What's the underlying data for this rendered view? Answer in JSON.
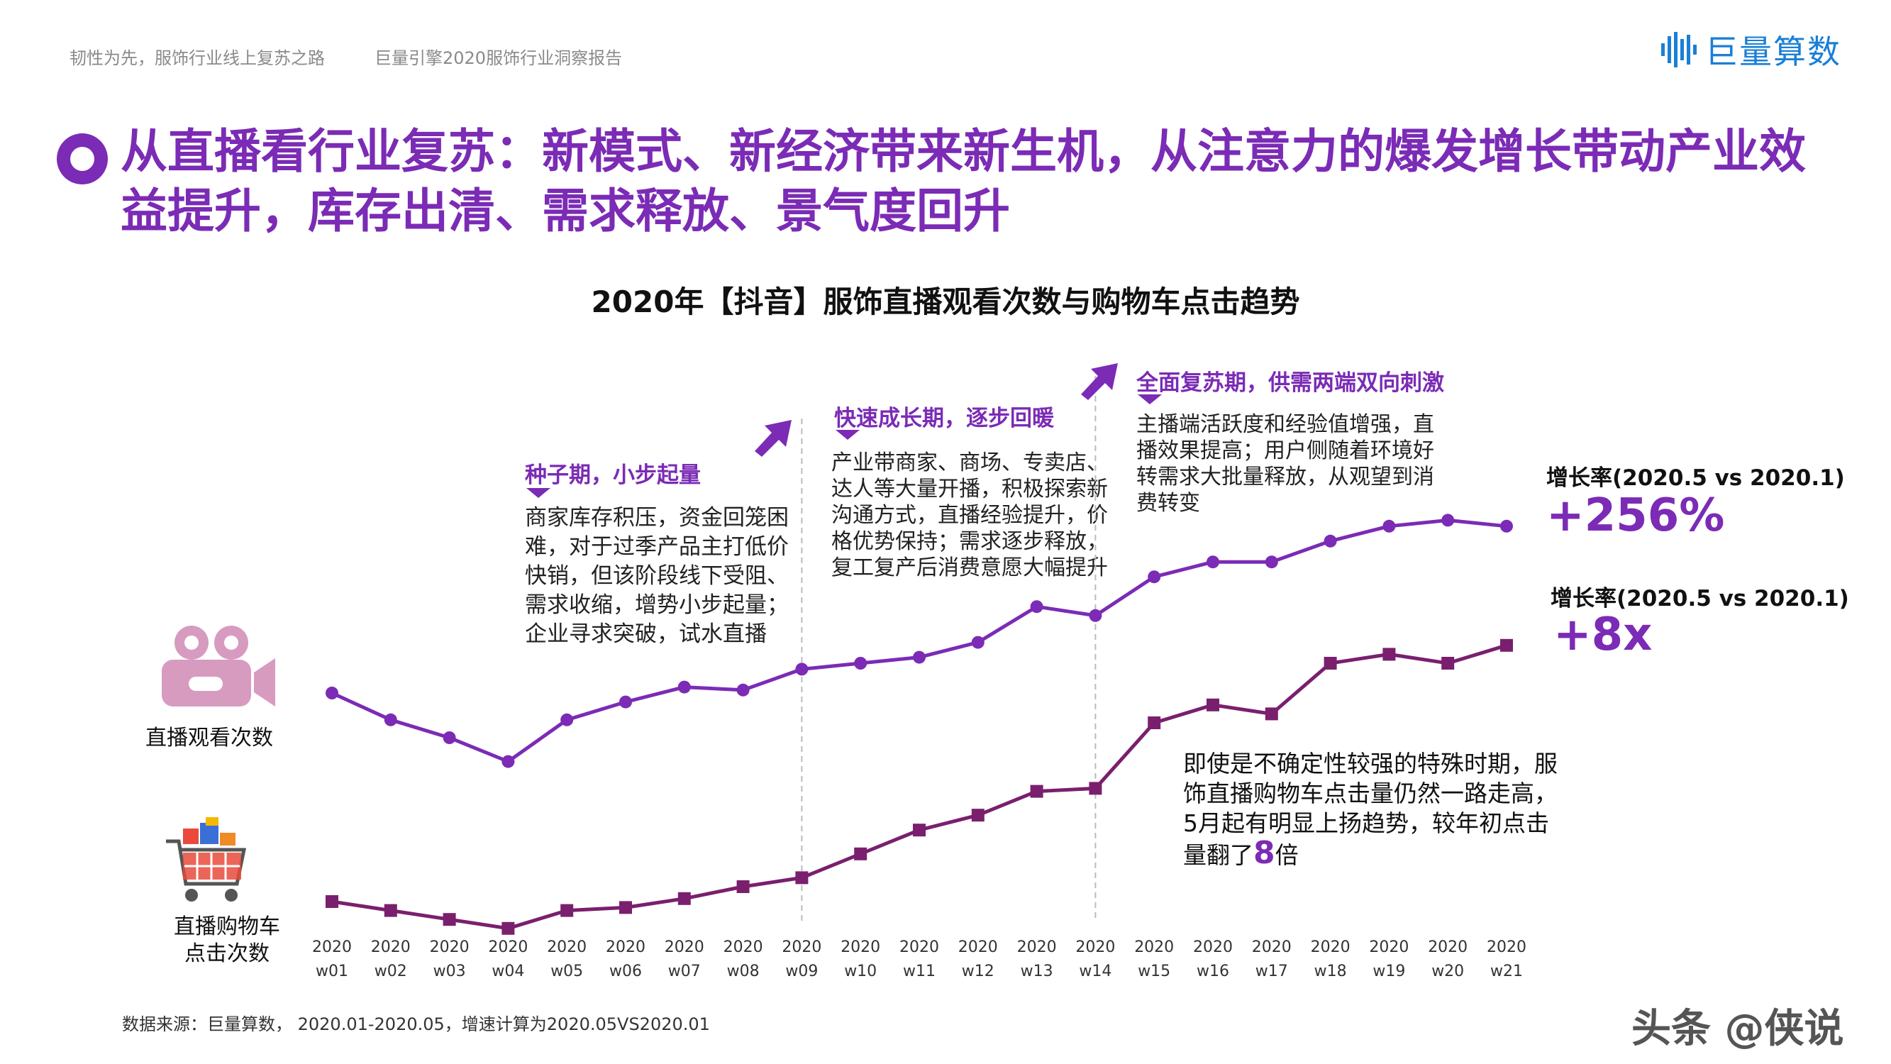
{
  "header": {
    "left_title": "韧性为先，服饰行业线上复苏之路",
    "report_title": "巨量引擎2020服饰行业洞察报告",
    "logo_text": "巨量算数"
  },
  "headline": "从直播看行业复苏：新模式、新经济带来新生机，从注意力的爆发增长带动产业效益提升，库存出清、需求释放、景气度回升",
  "phases": [
    {
      "title": "种子期，小步起量",
      "body": "商家库存积压，资金回笼困难，对于过季产品主打低价快销，但该阶段线下受阻、需求收缩，增势小步起量；企业寻求突破，试水直播"
    },
    {
      "title": "快速成长期，逐步回暖",
      "body": "产业带商家、商场、专卖店、达人等大量开播，积极探索新沟通方式，直播经验提升，价格优势保持；需求逐步释放，复工复产后消费意愿大幅提升"
    },
    {
      "title": "全面复苏期，供需两端双向刺激",
      "body": "主播端活跃度和经验值增强，直播效果提高；用户侧随着环境好转需求大批量释放，从观望到消费转变"
    }
  ],
  "series_labels": {
    "views": "直播观看次数",
    "clicks_line1": "直播购物车",
    "clicks_line2": "点击次数"
  },
  "growth": [
    {
      "label": "增长率(2020.5 vs 2020.1)",
      "value": "+256%"
    },
    {
      "label": "增长率(2020.5 vs 2020.1)",
      "value": "+8x"
    }
  ],
  "note": {
    "text": "即使是不确定性较强的特殊时期，服饰直播购物车点击量仍然一路走高，5月起有明显上扬趋势，较年初点击量翻了",
    "highlight": "8",
    "suffix": "倍"
  },
  "source": "数据来源：巨量算数， 2020.01-2020.05，增速计算为2020.05VS2020.01",
  "watermark": "头条 @侠说",
  "colors": {
    "accent": "#7b2bb5",
    "line_views": "#7b2bb5",
    "line_clicks": "#7a1f6e",
    "divider": "#bbbbbb"
  },
  "icons": {
    "views": "video-camera-icon",
    "clicks": "shopping-cart-icon"
  },
  "chart_data": {
    "type": "line",
    "title": "2020年【抖音】服饰直播观看次数与购物车点击趋势",
    "categories": [
      "2020 w01",
      "2020 w02",
      "2020 w03",
      "2020 w04",
      "2020 w05",
      "2020 w06",
      "2020 w07",
      "2020 w08",
      "2020 w09",
      "2020 w10",
      "2020 w11",
      "2020 w12",
      "2020 w13",
      "2020 w14",
      "2020 w15",
      "2020 w16",
      "2020 w17",
      "2020 w18",
      "2020 w19",
      "2020 w20",
      "2020 w21"
    ],
    "category_lines": [
      [
        "2020",
        "w01"
      ],
      [
        "2020",
        "w02"
      ],
      [
        "2020",
        "w03"
      ],
      [
        "2020",
        "w04"
      ],
      [
        "2020",
        "w05"
      ],
      [
        "2020",
        "w06"
      ],
      [
        "2020",
        "w07"
      ],
      [
        "2020",
        "w08"
      ],
      [
        "2020",
        "w09"
      ],
      [
        "2020",
        "w10"
      ],
      [
        "2020",
        "w11"
      ],
      [
        "2020",
        "w12"
      ],
      [
        "2020",
        "w13"
      ],
      [
        "2020",
        "w14"
      ],
      [
        "2020",
        "w15"
      ],
      [
        "2020",
        "w16"
      ],
      [
        "2020",
        "w17"
      ],
      [
        "2020",
        "w18"
      ],
      [
        "2020",
        "w19"
      ],
      [
        "2020",
        "w20"
      ],
      [
        "2020",
        "w21"
      ]
    ],
    "series": [
      {
        "name": "直播观看次数",
        "marker": "circle",
        "values": [
          80,
          71,
          65,
          57,
          71,
          77,
          82,
          81,
          88,
          90,
          92,
          97,
          109,
          106,
          119,
          124,
          124,
          131,
          136,
          138,
          136
        ]
      },
      {
        "name": "直播购物车点击次数",
        "marker": "square",
        "values": [
          10,
          7,
          4,
          1,
          7,
          8,
          11,
          15,
          18,
          26,
          34,
          39,
          47,
          48,
          70,
          76,
          73,
          90,
          93,
          90,
          96
        ]
      }
    ],
    "phase_dividers_after": [
      "2020 w09",
      "2020 w14"
    ],
    "ylim": [
      0,
      150
    ],
    "xlabel": "",
    "ylabel": "",
    "grid": false,
    "legend": "none"
  }
}
